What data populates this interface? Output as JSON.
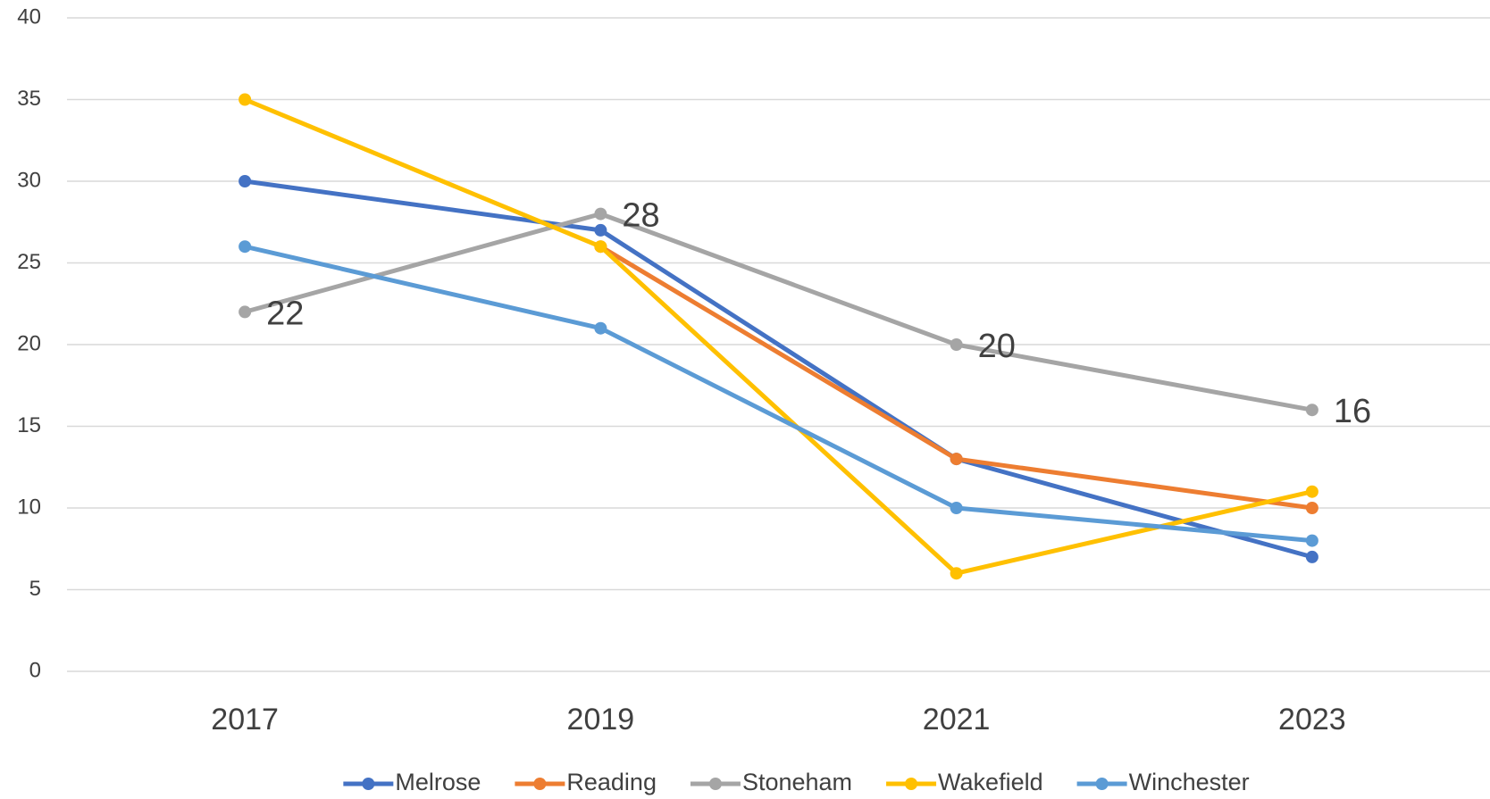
{
  "chart_data": {
    "type": "line",
    "categories": [
      "2017",
      "2019",
      "2021",
      "2023"
    ],
    "series": [
      {
        "name": "Melrose",
        "color": "#4472c4",
        "values": [
          30,
          27,
          13,
          7
        ]
      },
      {
        "name": "Reading",
        "color": "#ed7d31",
        "values": [
          null,
          26,
          13,
          10
        ]
      },
      {
        "name": "Stoneham",
        "color": "#a5a5a5",
        "values": [
          22,
          28,
          20,
          16
        ],
        "data_labels": true
      },
      {
        "name": "Wakefield",
        "color": "#ffc000",
        "values": [
          35,
          26,
          6,
          11
        ]
      },
      {
        "name": "Winchester",
        "color": "#5b9bd5",
        "values": [
          26,
          21,
          10,
          8
        ]
      }
    ],
    "ylim": [
      0,
      40
    ],
    "yticks": [
      0,
      5,
      10,
      15,
      20,
      25,
      30,
      35,
      40
    ],
    "grid": true,
    "legend": "bottom"
  }
}
